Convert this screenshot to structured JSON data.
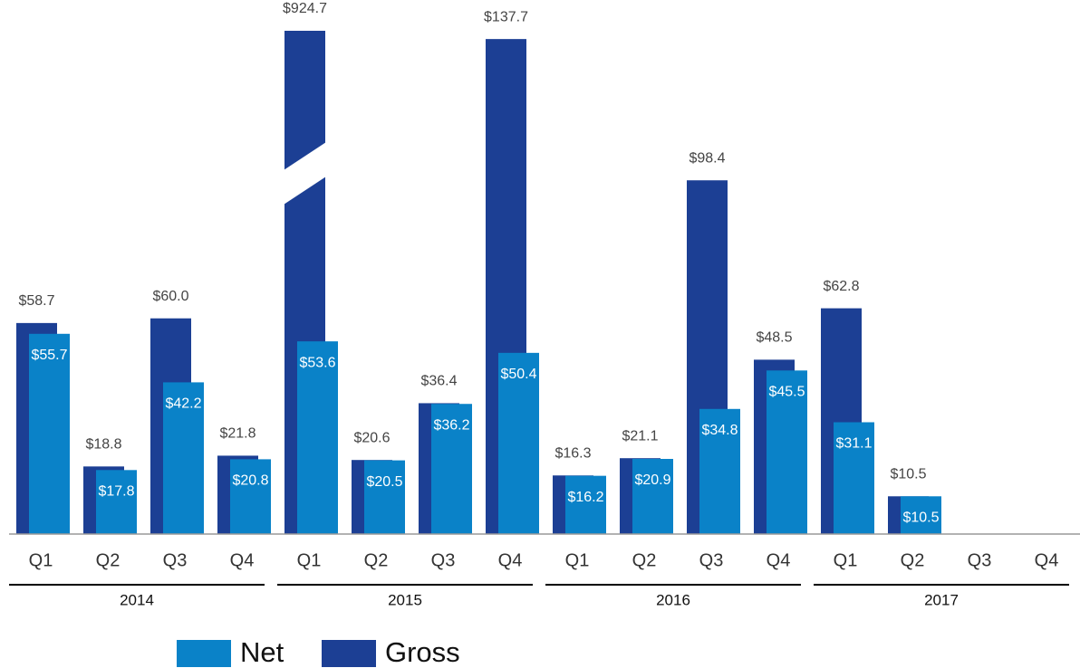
{
  "chart_data": {
    "type": "bar",
    "categories": [
      "Q1",
      "Q2",
      "Q3",
      "Q4",
      "Q1",
      "Q2",
      "Q3",
      "Q4",
      "Q1",
      "Q2",
      "Q3",
      "Q4",
      "Q1",
      "Q2",
      "Q3",
      "Q4"
    ],
    "groups": [
      "2014",
      "2015",
      "2016",
      "2017"
    ],
    "series": [
      {
        "name": "Net",
        "color": "#0a82c8",
        "values": [
          55.7,
          17.8,
          42.2,
          20.8,
          53.6,
          20.5,
          36.2,
          50.4,
          16.2,
          20.9,
          34.8,
          45.5,
          31.1,
          10.5,
          null,
          null
        ],
        "value_labels": [
          "$55.7",
          "$17.8",
          "$42.2",
          "$20.8",
          "$53.6",
          "$20.5",
          "$36.2",
          "$50.4",
          "$16.2",
          "$20.9",
          "$34.8",
          "$45.5",
          "$31.1",
          "$10.5",
          null,
          null
        ]
      },
      {
        "name": "Gross",
        "color": "#1c3f94",
        "values": [
          58.7,
          18.8,
          60.0,
          21.8,
          924.7,
          20.6,
          36.4,
          137.7,
          16.3,
          21.1,
          98.4,
          48.5,
          62.8,
          10.5,
          null,
          null
        ],
        "value_labels": [
          "$58.7",
          "$18.8",
          "$60.0",
          "$21.8",
          "$924.7",
          "$20.6",
          "$36.4",
          "$137.7",
          "$16.3",
          "$21.1",
          "$98.4",
          "$48.5",
          "$62.8",
          "$10.5",
          null,
          null
        ]
      }
    ],
    "ylim": [
      0,
      140
    ],
    "axis_break": true,
    "grid": false
  }
}
